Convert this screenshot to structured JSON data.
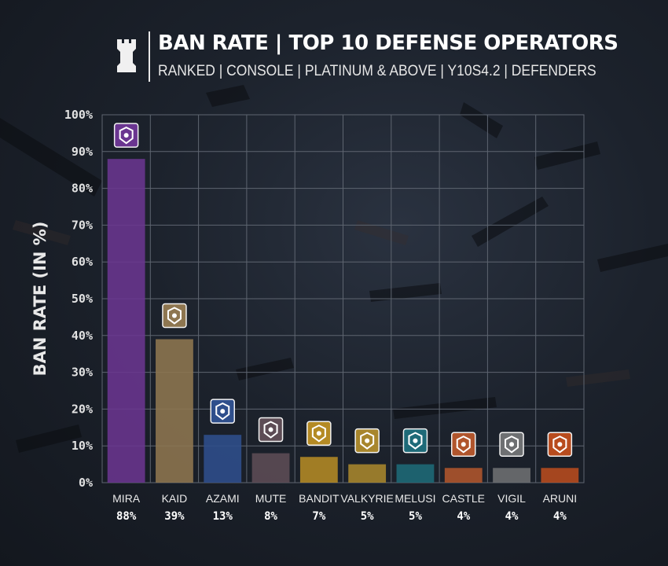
{
  "header": {
    "logo_icon": "rook-tower-icon",
    "title": "BAN RATE | TOP 10 DEFENSE OPERATORS",
    "subtitle": "RANKED | CONSOLE | PLATINUM & ABOVE | Y10S4.2 | DEFENDERS"
  },
  "chart_data": {
    "type": "bar",
    "title": "BAN RATE | TOP 10 DEFENSE OPERATORS",
    "subtitle": "RANKED | CONSOLE | PLATINUM & ABOVE | Y10S4.2 | DEFENDERS",
    "xlabel": "",
    "ylabel": "BAN RATE (IN %)",
    "ylim": [
      0,
      100
    ],
    "yticks": [
      0,
      10,
      20,
      30,
      40,
      50,
      60,
      70,
      80,
      90,
      100
    ],
    "ytick_labels": [
      "0%",
      "10%",
      "20%",
      "30%",
      "40%",
      "50%",
      "60%",
      "70%",
      "80%",
      "90%",
      "100%"
    ],
    "grid": true,
    "categories": [
      "MIRA",
      "KAID",
      "AZAMI",
      "MUTE",
      "BANDIT",
      "VALKYRIE",
      "MELUSI",
      "CASTLE",
      "VIGIL",
      "ARUNI"
    ],
    "values": [
      88,
      39,
      13,
      8,
      7,
      5,
      5,
      4,
      4,
      4
    ],
    "value_labels": [
      "88%",
      "39%",
      "13%",
      "8%",
      "7%",
      "5%",
      "5%",
      "4%",
      "4%",
      "4%"
    ],
    "colors": [
      "#6a3590",
      "#8e7650",
      "#2f4f8c",
      "#5d4c55",
      "#b48a24",
      "#a8862c",
      "#1e6a78",
      "#b0552c",
      "#6e7072",
      "#b84c1e"
    ],
    "icons": [
      "mira-icon",
      "kaid-icon",
      "azami-icon",
      "mute-icon",
      "bandit-icon",
      "valkyrie-icon",
      "melusi-icon",
      "castle-icon",
      "vigil-icon",
      "aruni-icon"
    ]
  }
}
